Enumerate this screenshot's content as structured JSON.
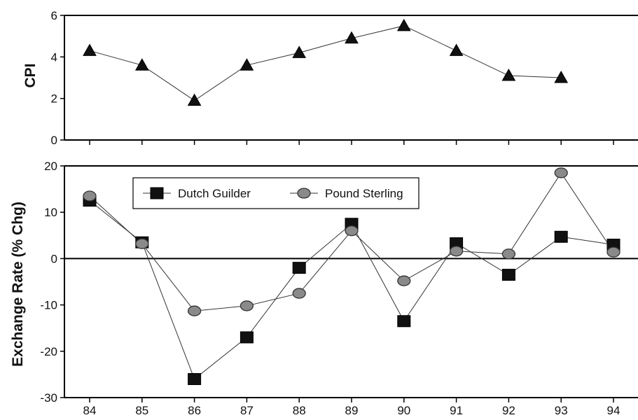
{
  "chart_data": [
    {
      "type": "line",
      "ylabel": "CPI",
      "xlabel": "",
      "ylim": [
        0,
        6
      ],
      "yticks": [
        "0",
        "2",
        "4",
        "6"
      ],
      "x": [
        "84",
        "85",
        "86",
        "87",
        "88",
        "89",
        "90",
        "91",
        "92",
        "93",
        "94"
      ],
      "series": [
        {
          "marker": "triangle",
          "color": "#111111",
          "values": [
            4.3,
            3.6,
            1.9,
            3.6,
            4.2,
            4.9,
            5.5,
            4.3,
            3.1,
            3.0,
            null
          ]
        }
      ],
      "grid": false
    },
    {
      "type": "line",
      "ylabel": "Exchange Rate (% Chg)",
      "xlabel": "",
      "ylim": [
        -30,
        20
      ],
      "yticks": [
        "-30",
        "-20",
        "-10",
        "0",
        "10",
        "20"
      ],
      "xticks": [
        "84",
        "85",
        "86",
        "87",
        "88",
        "89",
        "90",
        "91",
        "92",
        "93",
        "94"
      ],
      "x": [
        "84",
        "85",
        "86",
        "87",
        "88",
        "89",
        "90",
        "91",
        "92",
        "93",
        "94"
      ],
      "zero_line": true,
      "legend_position": "top-left",
      "series": [
        {
          "name": "Dutch Guilder",
          "marker": "square",
          "color": "#111111",
          "values": [
            12.5,
            3.5,
            -26,
            -17,
            -2,
            7.5,
            -13.5,
            3.3,
            -3.5,
            4.7,
            3.0
          ]
        },
        {
          "name": "Pound Sterling",
          "marker": "circle",
          "color": "#8a8a8a",
          "values": [
            13.5,
            3.2,
            -11.3,
            -10.2,
            -7.5,
            6.0,
            -4.8,
            1.6,
            1.0,
            18.5,
            1.4
          ]
        }
      ],
      "grid": false
    }
  ]
}
